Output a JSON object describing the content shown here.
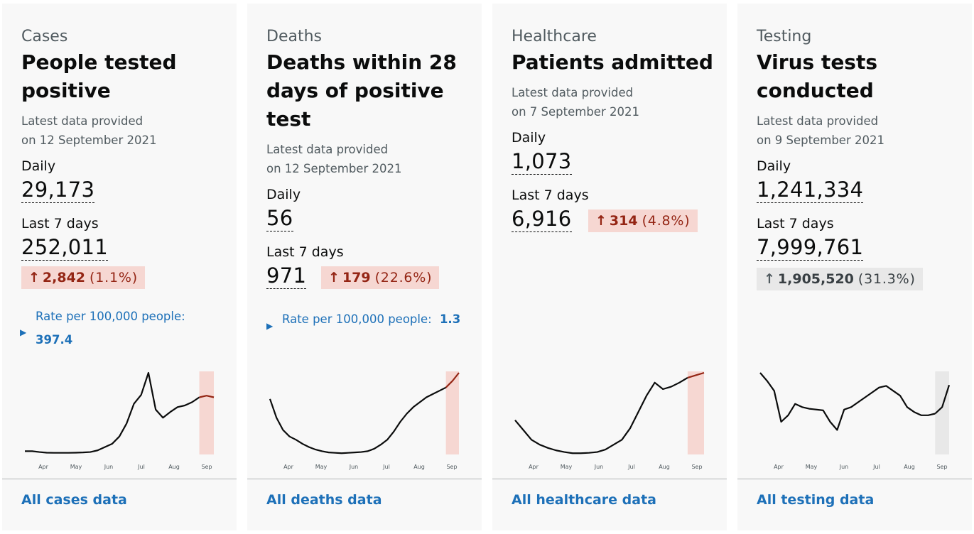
{
  "cards": [
    {
      "category": "Cases",
      "title": "People tested positive",
      "latest_line1": "Latest data provided",
      "latest_line2": "on 12 September 2021",
      "daily_label": "Daily",
      "daily_value": "29,173",
      "week_label": "Last 7 days",
      "week_value": "252,011",
      "change_arrow": "↑",
      "change_amount": "2,842",
      "change_percent": "(1.1%)",
      "rate_label": "Rate per 100,000 people:",
      "rate_value": "397.4",
      "footer_link": "All cases data",
      "chart_data": {
        "type": "line",
        "tick_labels": [
          "Apr",
          "May",
          "Jun",
          "Jul",
          "Aug",
          "Sep"
        ],
        "highlight": "last 7 days",
        "values": [
          4,
          4,
          3,
          2.2,
          2,
          2,
          2,
          2.2,
          2.5,
          3,
          5,
          9,
          13,
          22,
          38,
          62,
          73,
          100,
          55,
          45,
          52,
          58,
          60,
          64,
          70,
          72,
          70
        ]
      },
      "colors": {
        "line": "#0b0c0c",
        "recent": "#942514",
        "highlight": "#f6d7d2"
      }
    },
    {
      "category": "Deaths",
      "title": "Deaths within 28 days of positive test",
      "latest_line1": "Latest data provided",
      "latest_line2": "on 12 September 2021",
      "daily_label": "Daily",
      "daily_value": "56",
      "week_label": "Last 7 days",
      "week_value": "971",
      "change_arrow": "↑",
      "change_amount": "179",
      "change_percent": "(22.6%)",
      "rate_label": "Rate per 100,000 people:",
      "rate_value": "1.3",
      "footer_link": "All deaths data",
      "chart_data": {
        "type": "line",
        "tick_labels": [
          "Apr",
          "May",
          "Jun",
          "Jul",
          "Aug",
          "Sep"
        ],
        "highlight": "last 7 days",
        "values": [
          68,
          45,
          30,
          22,
          18,
          13,
          9,
          6,
          4,
          2.5,
          2,
          1.5,
          2,
          2.5,
          3,
          4,
          7,
          12,
          18,
          28,
          40,
          50,
          58,
          64,
          70,
          74,
          78,
          82,
          90,
          100
        ]
      },
      "colors": {
        "line": "#0b0c0c",
        "recent": "#942514",
        "highlight": "#f6d7d2"
      }
    },
    {
      "category": "Healthcare",
      "title": "Patients admitted",
      "latest_line1": "Latest data provided",
      "latest_line2": "on 7 September 2021",
      "daily_label": "Daily",
      "daily_value": "1,073",
      "week_label": "Last 7 days",
      "week_value": "6,916",
      "change_arrow": "↑",
      "change_amount": "314",
      "change_percent": "(4.8%)",
      "footer_link": "All healthcare data",
      "chart_data": {
        "type": "line",
        "tick_labels": [
          "Apr",
          "May",
          "Jun",
          "Jul",
          "Aug",
          "Sep"
        ],
        "highlight": "last 7 days",
        "values": [
          42,
          30,
          18,
          12,
          8,
          5,
          3,
          1.5,
          1.5,
          2,
          3,
          6,
          12,
          18,
          32,
          52,
          72,
          88,
          80,
          83,
          88,
          94,
          97,
          100
        ]
      },
      "colors": {
        "line": "#0b0c0c",
        "recent": "#942514",
        "highlight": "#f6d7d2"
      }
    },
    {
      "category": "Testing",
      "title": "Virus tests conducted",
      "latest_line1": "Latest data provided",
      "latest_line2": "on 9 September 2021",
      "daily_label": "Daily",
      "daily_value": "1,241,334",
      "week_label": "Last 7 days",
      "week_value": "7,999,761",
      "change_arrow": "↑",
      "change_amount": "1,905,520",
      "change_percent": "(31.3%)",
      "footer_link": "All testing data",
      "chart_data": {
        "type": "line",
        "tick_labels": [
          "Apr",
          "May",
          "Jun",
          "Jul",
          "Aug",
          "Sep"
        ],
        "highlight": "last 7 days",
        "values": [
          100,
          90,
          78,
          40,
          48,
          62,
          58,
          56,
          55,
          54,
          40,
          30,
          55,
          58,
          64,
          70,
          76,
          82,
          84,
          78,
          72,
          58,
          52,
          48,
          48,
          50,
          58,
          85
        ]
      },
      "colors": {
        "line": "#0b0c0c",
        "recent": "#0b0c0c",
        "highlight": "#e8e8e8"
      }
    }
  ]
}
